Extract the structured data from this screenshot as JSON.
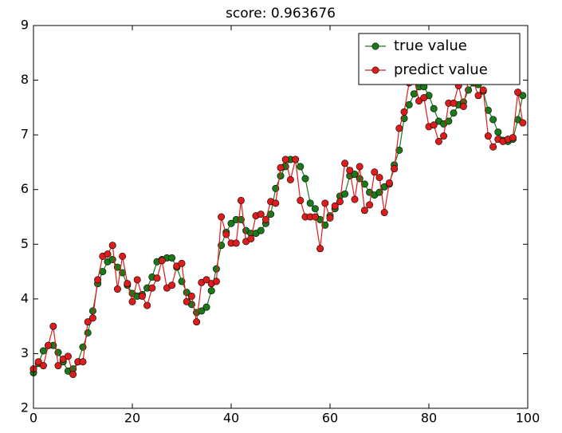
{
  "chart_data": {
    "type": "line",
    "title": "score: 0.963676",
    "x": [
      0,
      1,
      2,
      3,
      4,
      5,
      6,
      7,
      8,
      9,
      10,
      11,
      12,
      13,
      14,
      15,
      16,
      17,
      18,
      19,
      20,
      21,
      22,
      23,
      24,
      25,
      26,
      27,
      28,
      29,
      30,
      31,
      32,
      33,
      34,
      35,
      36,
      37,
      38,
      39,
      40,
      41,
      42,
      43,
      44,
      45,
      46,
      47,
      48,
      49,
      50,
      51,
      52,
      53,
      54,
      55,
      56,
      57,
      58,
      59,
      60,
      61,
      62,
      63,
      64,
      65,
      66,
      67,
      68,
      69,
      70,
      71,
      72,
      73,
      74,
      75,
      76,
      77,
      78,
      79,
      80,
      81,
      82,
      83,
      84,
      85,
      86,
      87,
      88,
      89,
      90,
      91,
      92,
      93,
      94,
      95,
      96,
      97,
      98,
      99
    ],
    "series": [
      {
        "name": "true value",
        "color": "#1a7a1a",
        "values": [
          2.65,
          2.82,
          3.05,
          3.15,
          3.15,
          3.02,
          2.85,
          2.68,
          2.72,
          2.85,
          3.12,
          3.38,
          3.78,
          4.28,
          4.5,
          4.68,
          4.72,
          4.58,
          4.48,
          4.25,
          4.1,
          4.05,
          4.08,
          4.2,
          4.4,
          4.68,
          4.72,
          4.75,
          4.75,
          4.58,
          4.32,
          4.12,
          3.9,
          3.75,
          3.78,
          3.85,
          4.15,
          4.55,
          4.98,
          5.22,
          5.38,
          5.45,
          5.45,
          5.25,
          5.2,
          5.2,
          5.25,
          5.38,
          5.55,
          6.02,
          6.25,
          6.42,
          6.55,
          6.55,
          6.42,
          6.2,
          5.75,
          5.65,
          5.45,
          5.35,
          5.52,
          5.65,
          5.88,
          5.92,
          6.25,
          6.28,
          6.2,
          6.1,
          5.95,
          5.9,
          5.95,
          6.05,
          6.1,
          6.45,
          6.72,
          7.3,
          7.55,
          7.75,
          7.88,
          7.88,
          7.72,
          7.48,
          7.25,
          7.2,
          7.25,
          7.4,
          7.55,
          7.6,
          7.82,
          7.95,
          7.92,
          7.8,
          7.45,
          7.28,
          7.05,
          6.9,
          6.88,
          6.92,
          7.28,
          7.72
        ]
      },
      {
        "name": "predict value",
        "color": "#dd1c1c",
        "values": [
          2.72,
          2.85,
          2.78,
          3.15,
          3.5,
          2.78,
          2.9,
          2.95,
          2.62,
          2.85,
          2.85,
          3.58,
          3.65,
          4.35,
          4.78,
          4.82,
          4.98,
          4.18,
          4.78,
          4.28,
          3.95,
          4.35,
          4.05,
          3.88,
          4.2,
          4.38,
          4.7,
          4.2,
          4.25,
          4.6,
          4.65,
          3.95,
          4.05,
          3.58,
          4.3,
          4.35,
          4.28,
          4.32,
          5.5,
          5.18,
          5.02,
          5.02,
          5.8,
          5.05,
          5.1,
          5.52,
          5.55,
          5.45,
          5.78,
          5.75,
          6.4,
          6.55,
          6.18,
          6.55,
          5.8,
          5.5,
          5.5,
          5.5,
          4.92,
          5.75,
          5.48,
          5.7,
          5.78,
          6.48,
          6.35,
          5.82,
          6.42,
          5.62,
          5.72,
          6.32,
          6.22,
          5.58,
          6.12,
          6.38,
          7.12,
          7.42,
          7.95,
          8.05,
          7.62,
          7.68,
          7.15,
          7.18,
          6.88,
          6.98,
          7.58,
          7.58,
          7.9,
          7.52,
          8.0,
          7.98,
          7.72,
          7.82,
          6.98,
          6.78,
          6.92,
          6.88,
          6.92,
          6.95,
          7.78,
          7.22
        ]
      }
    ],
    "xlim": [
      0,
      100
    ],
    "xticks": [
      0,
      20,
      40,
      60,
      80,
      100
    ],
    "ylim": [
      2,
      9
    ],
    "yticks": [
      2,
      3,
      4,
      5,
      6,
      7,
      8,
      9
    ],
    "legend": "upper right"
  }
}
